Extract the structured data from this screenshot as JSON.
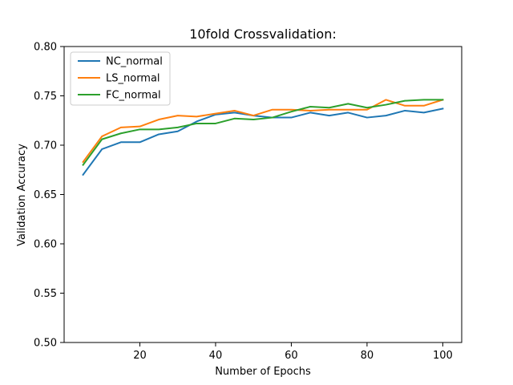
{
  "chart_data": {
    "type": "line",
    "title": "10fold Crossvalidation:",
    "xlabel": "Number of Epochs",
    "ylabel": "Validation Accuracy",
    "xlim": [
      0,
      105
    ],
    "ylim": [
      0.5,
      0.8
    ],
    "xticks": [
      "20",
      "40",
      "60",
      "80",
      "100"
    ],
    "yticks": [
      "0.50",
      "0.55",
      "0.60",
      "0.65",
      "0.70",
      "0.75",
      "0.80"
    ],
    "grid": false,
    "legend_position": "top-left",
    "x": [
      5,
      10,
      15,
      20,
      25,
      30,
      35,
      40,
      45,
      50,
      55,
      60,
      65,
      70,
      75,
      80,
      85,
      90,
      95,
      100
    ],
    "series": [
      {
        "name": "NC_normal",
        "color": "#1f77b4",
        "values": [
          0.67,
          0.696,
          0.703,
          0.703,
          0.711,
          0.714,
          0.724,
          0.731,
          0.733,
          0.73,
          0.728,
          0.728,
          0.733,
          0.73,
          0.733,
          0.728,
          0.73,
          0.735,
          0.733,
          0.737
        ]
      },
      {
        "name": "LS_normal",
        "color": "#ff7f0e",
        "values": [
          0.683,
          0.709,
          0.718,
          0.719,
          0.726,
          0.73,
          0.729,
          0.732,
          0.735,
          0.73,
          0.736,
          0.736,
          0.735,
          0.736,
          0.736,
          0.736,
          0.746,
          0.74,
          0.74,
          0.746
        ]
      },
      {
        "name": "FC_normal",
        "color": "#2ca02c",
        "values": [
          0.68,
          0.706,
          0.712,
          0.716,
          0.716,
          0.718,
          0.722,
          0.722,
          0.727,
          0.726,
          0.728,
          0.734,
          0.739,
          0.738,
          0.742,
          0.738,
          0.741,
          0.745,
          0.746,
          0.746
        ]
      }
    ]
  }
}
